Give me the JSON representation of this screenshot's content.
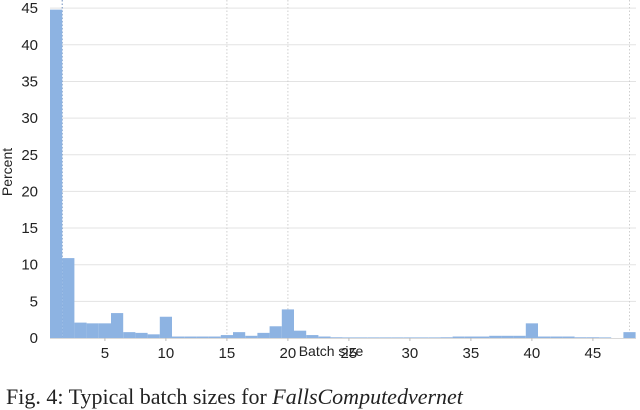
{
  "chart_data": {
    "type": "bar",
    "title": "",
    "xlabel": "Batch size",
    "ylabel": "Percent",
    "ylim": [
      0,
      45
    ],
    "xlim": [
      0.5,
      48.5
    ],
    "yticks": [
      0,
      5,
      10,
      15,
      20,
      25,
      30,
      35,
      40,
      45
    ],
    "xticks": [
      5,
      10,
      15,
      20,
      25,
      30,
      35,
      40,
      45
    ],
    "grid": {
      "horizontal": true,
      "vertical_dotted_at": [
        2,
        15,
        20,
        48
      ]
    },
    "bar_color": "#8db3e2",
    "categories": [
      1,
      2,
      3,
      4,
      5,
      6,
      7,
      8,
      9,
      10,
      11,
      12,
      13,
      14,
      15,
      16,
      17,
      18,
      19,
      20,
      21,
      22,
      23,
      24,
      25,
      26,
      27,
      28,
      29,
      30,
      31,
      32,
      33,
      34,
      35,
      36,
      37,
      38,
      39,
      40,
      41,
      42,
      43,
      44,
      45,
      46,
      47,
      48
    ],
    "values": [
      44.8,
      10.9,
      2.1,
      2.0,
      2.0,
      3.4,
      0.8,
      0.7,
      0.5,
      2.9,
      0.2,
      0.2,
      0.2,
      0.2,
      0.4,
      0.8,
      0.3,
      0.7,
      1.6,
      3.9,
      1.0,
      0.4,
      0.2,
      0.1,
      0.05,
      0.05,
      0.05,
      0.05,
      0.05,
      0.05,
      0.05,
      0.05,
      0.1,
      0.2,
      0.2,
      0.2,
      0.3,
      0.3,
      0.3,
      2.0,
      0.2,
      0.2,
      0.2,
      0.1,
      0.1,
      0.05,
      0.0,
      0.8
    ]
  },
  "caption": {
    "prefix": "Fig. 4: Typical batch sizes for ",
    "italic": "FallsComputedvernet"
  }
}
